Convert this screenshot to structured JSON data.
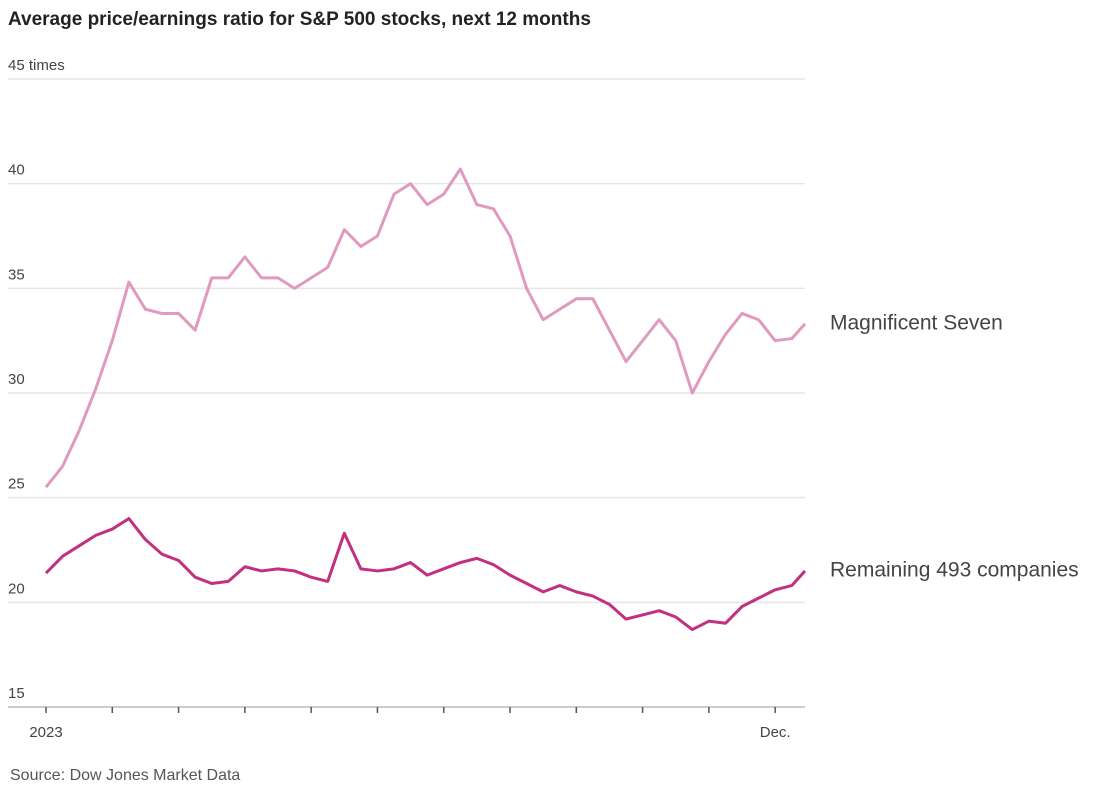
{
  "chart_data": {
    "type": "line",
    "title": "Average price/earnings ratio for S&P 500 stocks, next 12 months",
    "source": "Source: Dow Jones Market Data",
    "x": [
      0,
      0.25,
      0.5,
      0.75,
      1,
      1.25,
      1.5,
      1.75,
      2,
      2.25,
      2.5,
      2.75,
      3,
      3.25,
      3.5,
      3.75,
      4,
      4.25,
      4.5,
      4.75,
      5,
      5.25,
      5.5,
      5.75,
      6,
      6.25,
      6.5,
      6.75,
      7,
      7.25,
      7.5,
      7.75,
      8,
      8.25,
      8.5,
      8.75,
      9,
      9.25,
      9.5,
      9.75,
      10,
      10.25,
      10.5,
      10.75,
      11,
      11.25,
      11.45
    ],
    "series": [
      {
        "name": "Magnificent Seven",
        "color": "#e09ac0",
        "values": [
          25.5,
          26.5,
          28.2,
          30.2,
          32.5,
          35.3,
          34.0,
          33.8,
          33.8,
          33.0,
          35.5,
          35.5,
          36.5,
          35.5,
          35.5,
          35.0,
          35.5,
          36.0,
          37.8,
          37.0,
          37.5,
          39.5,
          40.0,
          39.0,
          39.5,
          40.7,
          39.0,
          38.8,
          37.5,
          35.0,
          33.5,
          34.0,
          34.5,
          34.5,
          33.0,
          31.5,
          32.5,
          33.5,
          32.5,
          30.0,
          31.5,
          32.8,
          33.8,
          33.5,
          32.5,
          32.6,
          33.3
        ]
      },
      {
        "name": "Remaining 493 companies",
        "color": "#c2307f",
        "values": [
          21.4,
          22.2,
          22.7,
          23.2,
          23.5,
          24.0,
          23.0,
          22.3,
          22.0,
          21.2,
          20.9,
          21.0,
          21.7,
          21.5,
          21.6,
          21.5,
          21.2,
          21.0,
          23.3,
          21.6,
          21.5,
          21.6,
          21.9,
          21.3,
          21.6,
          21.9,
          22.1,
          21.8,
          21.3,
          20.9,
          20.5,
          20.8,
          20.5,
          20.3,
          19.9,
          19.2,
          19.4,
          19.6,
          19.3,
          18.7,
          19.1,
          19.0,
          19.8,
          20.2,
          20.6,
          20.8,
          21.5
        ]
      }
    ],
    "xlim": [
      0,
      11.45
    ],
    "xticks": [
      {
        "value": 0,
        "label": "2023"
      },
      {
        "value": 11,
        "label": "Dec."
      }
    ],
    "xminor_ticks": [
      1,
      2,
      3,
      4,
      5,
      6,
      7,
      8,
      9,
      10
    ],
    "ylim": [
      15,
      45
    ],
    "yticks": [
      15,
      20,
      25,
      30,
      35,
      40,
      {
        "value": 45,
        "label": "45 times"
      }
    ],
    "grid": true
  }
}
